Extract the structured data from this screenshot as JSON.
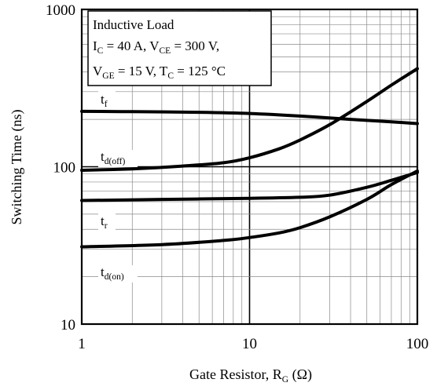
{
  "chart_data": {
    "type": "line",
    "title": "",
    "xlabel": {
      "main": "Gate Resistor, R",
      "sub": "G",
      "unit": " (Ω)"
    },
    "ylabel": "Switching Time (ns)",
    "x_scale": "log",
    "y_scale": "log",
    "xlim": [
      1,
      100
    ],
    "ylim": [
      10,
      1000
    ],
    "grid": true,
    "x_ticks": [
      "1",
      "10",
      "100"
    ],
    "y_ticks": [
      "10",
      "100",
      "1000"
    ],
    "conditions_box": {
      "line1": "Inductive Load",
      "line2": {
        "a": "I",
        "a_sub": "C",
        "b": " = 40 A, V",
        "b_sub": "CE",
        "c": " = 300 V,"
      },
      "line3": {
        "a": "V",
        "a_sub": "GE",
        "b": " = 15 V, T",
        "b_sub": "C",
        "c": " = 125 °C"
      }
    },
    "series": [
      {
        "name": "tf",
        "label": {
          "main": "t",
          "sub": "f"
        },
        "x": [
          1,
          2,
          5,
          10,
          20,
          40,
          70,
          100
        ],
        "y": [
          225,
          224,
          222,
          218,
          210,
          200,
          193,
          188
        ]
      },
      {
        "name": "td(off)",
        "label": {
          "main": "t",
          "sub": "d(off)"
        },
        "x": [
          1,
          2,
          4,
          7,
          10,
          15,
          20,
          30,
          50,
          70,
          100
        ],
        "y": [
          95,
          97,
          101,
          106,
          114,
          130,
          148,
          185,
          260,
          330,
          420
        ]
      },
      {
        "name": "tr",
        "label": {
          "main": "t",
          "sub": "r"
        },
        "x": [
          1,
          3,
          10,
          20,
          30,
          50,
          70,
          100
        ],
        "y": [
          61,
          62,
          63,
          64,
          66,
          74,
          82,
          92
        ]
      },
      {
        "name": "td(on)",
        "label": {
          "main": "t",
          "sub": "d(on)"
        },
        "x": [
          1,
          3,
          7,
          10,
          15,
          20,
          30,
          50,
          70,
          100
        ],
        "y": [
          31,
          32,
          34,
          35.5,
          38,
          41,
          48,
          62,
          77,
          94
        ]
      }
    ]
  }
}
